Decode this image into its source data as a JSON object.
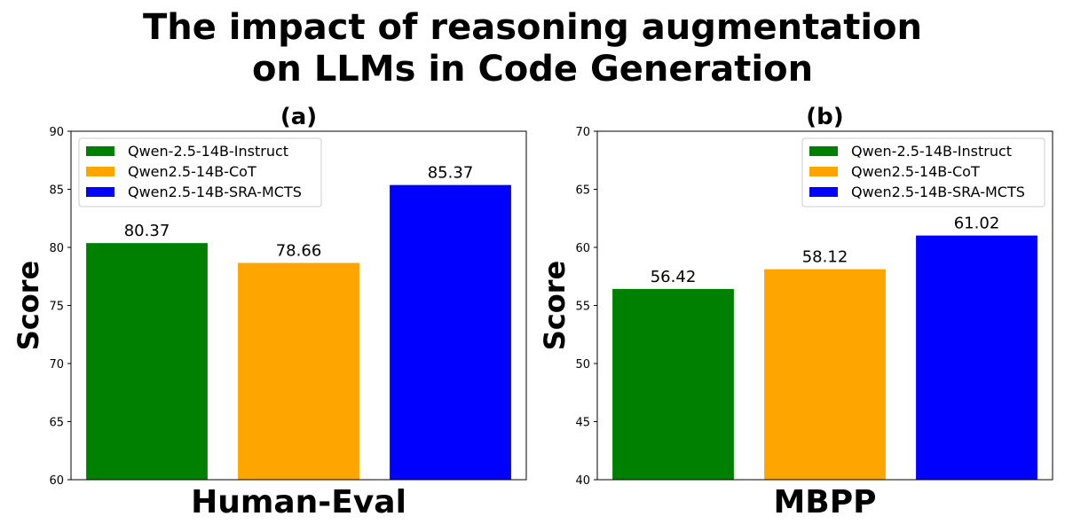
{
  "title_line1": "The impact of reasoning augmentation",
  "title_line2": "on LLMs in Code Generation",
  "series_colors": [
    "#008000",
    "#FFA500",
    "#0000FF"
  ],
  "chart_data": [
    {
      "type": "bar",
      "title": "(a)",
      "xlabel": "Human-Eval",
      "ylabel": "Score",
      "ylim": [
        60,
        90
      ],
      "yticks": [
        60,
        65,
        70,
        75,
        80,
        85,
        90
      ],
      "legend_position": "top-left",
      "series": [
        {
          "name": "Qwen-2.5-14B-Instruct",
          "value": 80.37,
          "label": "80.37"
        },
        {
          "name": "Qwen2.5-14B-CoT",
          "value": 78.66,
          "label": "78.66"
        },
        {
          "name": "Qwen2.5-14B-SRA-MCTS",
          "value": 85.37,
          "label": "85.37"
        }
      ]
    },
    {
      "type": "bar",
      "title": "(b)",
      "xlabel": "MBPP",
      "ylabel": "Score",
      "ylim": [
        40,
        70
      ],
      "yticks": [
        40,
        45,
        50,
        55,
        60,
        65,
        70
      ],
      "legend_position": "top-right",
      "series": [
        {
          "name": "Qwen-2.5-14B-Instruct",
          "value": 56.42,
          "label": "56.42"
        },
        {
          "name": "Qwen2.5-14B-CoT",
          "value": 58.12,
          "label": "58.12"
        },
        {
          "name": "Qwen2.5-14B-SRA-MCTS",
          "value": 61.02,
          "label": "61.02"
        }
      ]
    }
  ]
}
